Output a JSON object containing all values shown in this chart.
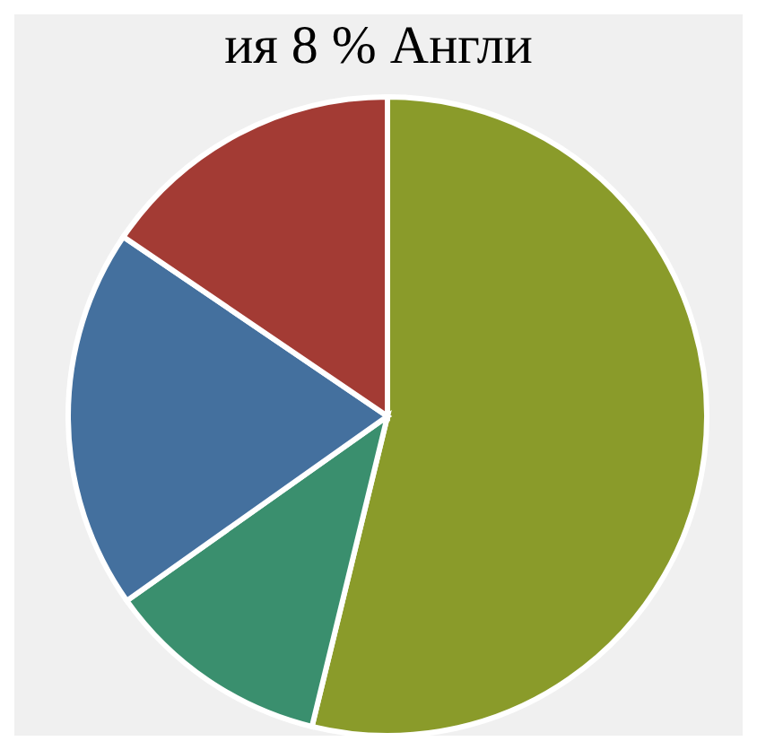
{
  "chart_data": {
    "type": "pie",
    "annotations": [
      "ия 8 % Англи"
    ],
    "categories": [
      null,
      null,
      null,
      null
    ],
    "values": [
      53.8,
      11.4,
      19.3,
      15.5
    ],
    "colors": [
      "#8a9b2a",
      "#3a8f6e",
      "#44709e",
      "#a33b34"
    ]
  }
}
